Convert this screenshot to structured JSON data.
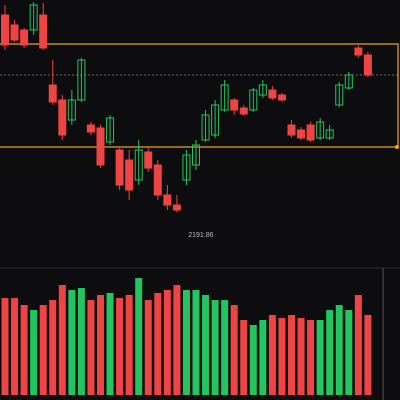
{
  "chart_data": {
    "type": "candlestick",
    "open": [
      2389,
      2379,
      2374,
      2374,
      2389,
      2319,
      2304,
      2284,
      2304,
      2279,
      2276,
      2262,
      2254,
      2244,
      2224,
      2252,
      2239,
      2209,
      2199,
      2224,
      2239,
      2264,
      2269,
      2294,
      2304,
      2296,
      2294,
      2309,
      2314,
      2309,
      2279,
      2274,
      2279,
      2266,
      2266,
      2299,
      2316,
      2356,
      2349
    ],
    "high": [
      2399,
      2384,
      2376,
      2402,
      2401,
      2344,
      2309,
      2314,
      2346,
      2282,
      2279,
      2289,
      2256,
      2254,
      2264,
      2256,
      2244,
      2219,
      2209,
      2254,
      2264,
      2294,
      2304,
      2324,
      2306,
      2299,
      2316,
      2324,
      2318,
      2311,
      2284,
      2277,
      2282,
      2286,
      2279,
      2322,
      2332,
      2359,
      2352
    ],
    "low": [
      2354,
      2362,
      2356,
      2369,
      2354,
      2299,
      2264,
      2279,
      2302,
      2269,
      2236,
      2259,
      2214,
      2204,
      2219,
      2232,
      2204,
      2194,
      2191.86,
      2219,
      2234,
      2262,
      2266,
      2292,
      2289,
      2288,
      2292,
      2306,
      2304,
      2302,
      2266,
      2264,
      2262,
      2264,
      2264,
      2297,
      2314,
      2346,
      2327
    ],
    "close": [
      2359,
      2364,
      2359,
      2399,
      2356,
      2302,
      2269,
      2304,
      2344,
      2272,
      2239,
      2286,
      2219,
      2214,
      2254,
      2236,
      2209,
      2199,
      2194,
      2249,
      2259,
      2289,
      2299,
      2319,
      2294,
      2290,
      2314,
      2319,
      2306,
      2304,
      2269,
      2266,
      2264,
      2282,
      2274,
      2319,
      2329,
      2349,
      2329
    ],
    "volume": [
      97,
      97,
      90,
      85,
      90,
      95,
      110,
      105,
      107,
      95,
      100,
      102,
      97,
      100,
      117,
      95,
      102,
      105,
      110,
      105,
      105,
      100,
      95,
      95,
      90,
      75,
      70,
      75,
      80,
      77,
      80,
      77,
      75,
      75,
      85,
      90,
      85,
      100,
      80
    ],
    "ylim": [
      2134,
      2404
    ],
    "volume_ylim": [
      0,
      120
    ],
    "box": [
      2257,
      2360
    ],
    "price_line": 2329,
    "up_color": "#22c55e",
    "down_color": "#ef4444",
    "box_color": "#f5a623"
  }
}
